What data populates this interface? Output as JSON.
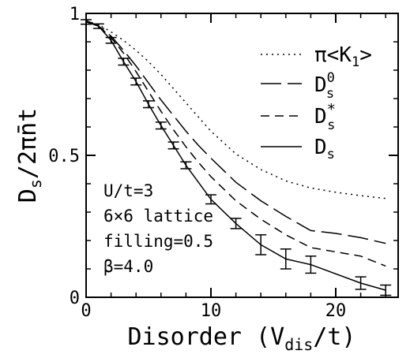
{
  "chart_data": {
    "type": "line",
    "xlabel": "Disorder (V",
    "xlabel_sub": "dis",
    "xlabel_end": "/t)",
    "ylabel": "D",
    "ylabel_sub": "s",
    "ylabel_end": "/2πn̄t",
    "xlim": [
      0,
      25
    ],
    "ylim": [
      0,
      1
    ],
    "xticks": [
      0,
      10,
      20
    ],
    "xtick_labels": [
      "0",
      "10",
      "20"
    ],
    "yticks": [
      0,
      0.5,
      1
    ],
    "ytick_labels": [
      "0",
      "0.5",
      "1"
    ],
    "legend": [
      {
        "key": "piK1",
        "text": "π<K",
        "sub": "1",
        "end": ">",
        "dash": "2,5"
      },
      {
        "key": "Ds0",
        "text": "D",
        "sub": "s",
        "sup": "0",
        "dash": "26,8"
      },
      {
        "key": "Dsstar",
        "text": "D",
        "sub": "s",
        "sup": "*",
        "dash": "11,7"
      },
      {
        "key": "Ds",
        "text": "D",
        "sub": "s",
        "dash": ""
      }
    ],
    "annotation": [
      "U/t=3",
      "6×6 lattice",
      "filling=0.5",
      "β=4.0"
    ],
    "series": [
      {
        "key": "piK1",
        "x": [
          0,
          1,
          2,
          3,
          4,
          5,
          6,
          7,
          8,
          9,
          10,
          12,
          14,
          16,
          18,
          20,
          22,
          24
        ],
        "y": [
          0.975,
          0.96,
          0.935,
          0.905,
          0.87,
          0.83,
          0.785,
          0.735,
          0.685,
          0.635,
          0.585,
          0.505,
          0.45,
          0.41,
          0.385,
          0.37,
          0.358,
          0.348
        ]
      },
      {
        "key": "Ds0",
        "x": [
          0,
          1,
          2,
          3,
          4,
          5,
          6,
          7,
          8,
          9,
          10,
          12,
          14,
          16,
          18,
          20,
          22,
          24
        ],
        "y": [
          0.975,
          0.955,
          0.92,
          0.87,
          0.815,
          0.755,
          0.695,
          0.64,
          0.585,
          0.535,
          0.49,
          0.405,
          0.34,
          0.285,
          0.235,
          0.225,
          0.21,
          0.19
        ]
      },
      {
        "key": "Dsstar",
        "x": [
          0,
          1,
          2,
          3,
          4,
          5,
          6,
          7,
          8,
          9,
          10,
          12,
          14,
          16,
          18,
          20,
          22,
          24
        ],
        "y": [
          0.975,
          0.955,
          0.915,
          0.86,
          0.795,
          0.725,
          0.655,
          0.59,
          0.53,
          0.475,
          0.425,
          0.34,
          0.275,
          0.22,
          0.175,
          0.16,
          0.145,
          0.11
        ]
      },
      {
        "key": "Ds",
        "x": [
          0,
          1,
          2,
          3,
          4,
          5,
          6,
          7,
          8,
          10,
          12,
          14,
          16,
          18,
          22,
          24
        ],
        "y": [
          0.97,
          0.955,
          0.905,
          0.83,
          0.76,
          0.68,
          0.605,
          0.535,
          0.465,
          0.345,
          0.26,
          0.185,
          0.135,
          0.115,
          0.05,
          0.025
        ],
        "err": [
          0.008,
          0.008,
          0.01,
          0.012,
          0.012,
          0.012,
          0.012,
          0.012,
          0.012,
          0.016,
          0.018,
          0.035,
          0.035,
          0.03,
          0.022,
          0.018
        ]
      }
    ]
  }
}
